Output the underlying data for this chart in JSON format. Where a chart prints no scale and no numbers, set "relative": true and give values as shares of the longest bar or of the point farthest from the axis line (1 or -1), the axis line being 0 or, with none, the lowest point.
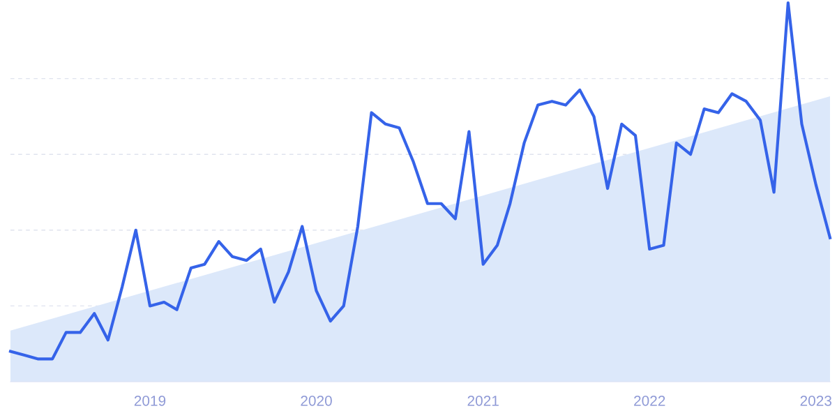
{
  "chart_data": {
    "type": "line",
    "relative": true,
    "grid": "y",
    "legend": false,
    "marker": "none",
    "line_style": "solid",
    "x": [
      "2018-03",
      "2018-04",
      "2018-05",
      "2018-06",
      "2018-07",
      "2018-08",
      "2018-09",
      "2018-10",
      "2018-11",
      "2018-12",
      "2019-01",
      "2019-02",
      "2019-03",
      "2019-04",
      "2019-05",
      "2019-06",
      "2019-07",
      "2019-08",
      "2019-09",
      "2019-10",
      "2019-11",
      "2019-12",
      "2020-01",
      "2020-02",
      "2020-03",
      "2020-04",
      "2020-05",
      "2020-06",
      "2020-07",
      "2020-08",
      "2020-09",
      "2020-10",
      "2020-11",
      "2020-12",
      "2021-01",
      "2021-02",
      "2021-03",
      "2021-04",
      "2021-05",
      "2021-06",
      "2021-07",
      "2021-08",
      "2021-09",
      "2021-10",
      "2021-11",
      "2021-12",
      "2022-01",
      "2022-02",
      "2022-03",
      "2022-04",
      "2022-05",
      "2022-06",
      "2022-07",
      "2022-08",
      "2022-09",
      "2022-10",
      "2022-11",
      "2022-12",
      "2023-01",
      "2023-02"
    ],
    "xlim": [
      "2018-03",
      "2023-02"
    ],
    "xticks": [
      {
        "value": "2019-01",
        "label": "2019"
      },
      {
        "value": "2020-01",
        "label": "2020"
      },
      {
        "value": "2021-01",
        "label": "2021"
      },
      {
        "value": "2022-01",
        "label": "2022"
      },
      {
        "value": "2023-01",
        "label": "2023"
      }
    ],
    "series": [
      {
        "type": "area",
        "color": "#dce8fa",
        "x": [
          "2018-03",
          "2023-02"
        ],
        "values": [
          0.135,
          0.753
        ]
      },
      {
        "color": "#3563e9",
        "values": [
          0.08,
          0.07,
          0.06,
          0.06,
          0.13,
          0.13,
          0.18,
          0.11,
          0.25,
          0.4,
          0.2,
          0.21,
          0.19,
          0.3,
          0.31,
          0.37,
          0.33,
          0.32,
          0.35,
          0.21,
          0.29,
          0.41,
          0.24,
          0.16,
          0.2,
          0.41,
          0.71,
          0.68,
          0.67,
          0.58,
          0.47,
          0.47,
          0.43,
          0.66,
          0.31,
          0.36,
          0.47,
          0.63,
          0.73,
          0.74,
          0.73,
          0.77,
          0.7,
          0.51,
          0.68,
          0.65,
          0.35,
          0.36,
          0.63,
          0.6,
          0.72,
          0.71,
          0.76,
          0.74,
          0.69,
          0.5,
          1.0,
          0.68,
          0.52,
          0.38
        ]
      }
    ]
  }
}
